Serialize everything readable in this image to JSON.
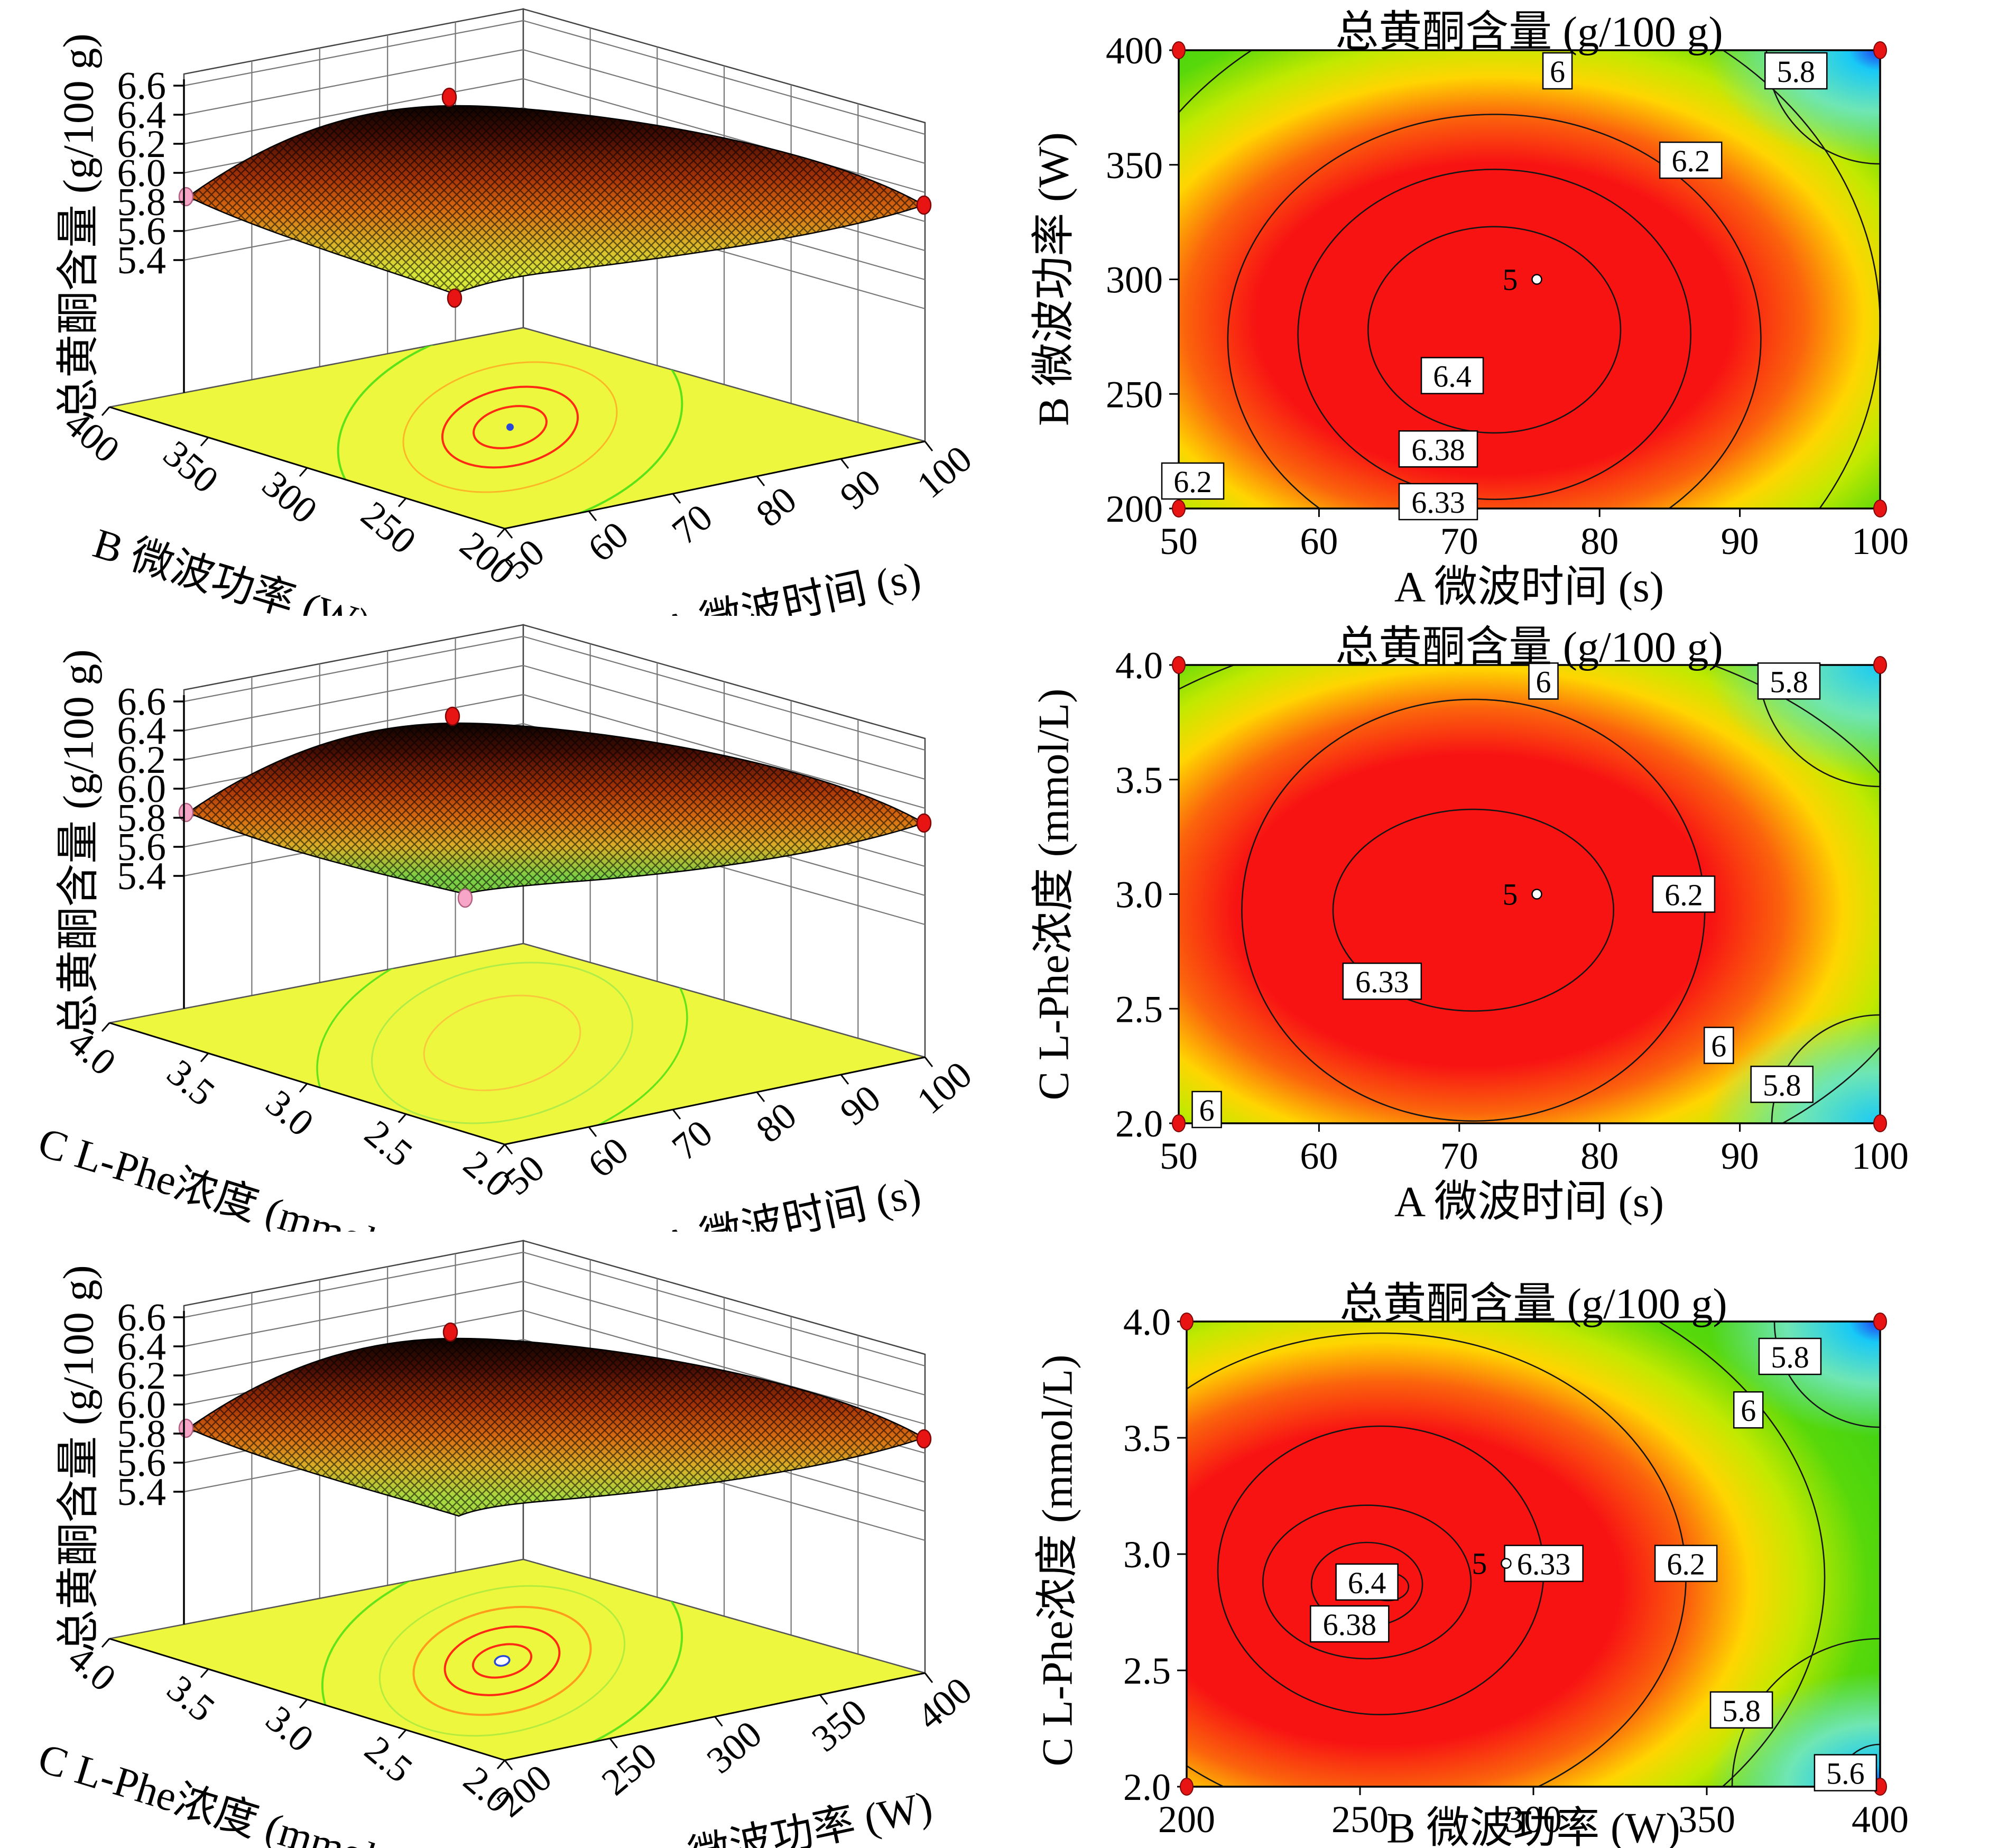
{
  "shared": {
    "z_axis_label": "总黄酮含量 (g/100 g)",
    "contour_title": "总黄酮含量 (g/100 g)",
    "z_ticks": [
      "6.6",
      "6.4",
      "6.2",
      "6.0",
      "5.8",
      "5.6",
      "5.4"
    ]
  },
  "axes": {
    "time": {
      "label": "A 微波时间 (s)",
      "ticks": [
        "50",
        "60",
        "70",
        "80",
        "90",
        "100"
      ],
      "range": [
        50,
        100
      ]
    },
    "power": {
      "label": "B 微波功率 (W)",
      "ticks": [
        "200",
        "250",
        "300",
        "350",
        "400"
      ],
      "range": [
        200,
        400
      ]
    },
    "phe": {
      "label": "C L-Phe浓度 (mmol/L)",
      "ticks": [
        "2.0",
        "2.5",
        "3.0",
        "3.5",
        "4.0"
      ],
      "range": [
        2,
        4
      ]
    }
  },
  "colors": {
    "contour_high": "#f81313",
    "contour_orange": "#fb640c",
    "contour_yellow": "#ffd501",
    "contour_green": "#3fd214",
    "contour_cyan": "#18c9f6",
    "contour_blue": "#2334f2",
    "design_point_red": "#e81414",
    "design_point_pink": "#f7a6c8",
    "floor_yellow": "#edf73d"
  },
  "chart_data": [
    {
      "type": "surface3d",
      "panel": "row1-left",
      "zlabel": "总黄酮含量 (g/100 g)",
      "xlabel": "A 微波时间 (s)",
      "ylabel": "B 微波功率 (W)",
      "x_range": [
        50,
        100
      ],
      "y_range": [
        200,
        400
      ],
      "z_ticks": [
        "6.6",
        "6.4",
        "6.2",
        "6.0",
        "5.8",
        "5.6",
        "5.4"
      ],
      "peak": {
        "x": 75,
        "y": 300,
        "z": 6.42
      },
      "edge_value": 5.8,
      "markers": "red design points at peak, right corner and front corner; pink point at left edge near z=5.8",
      "floor_projection": "yellow plane with two red contour ellipses, orange and green outer rings, blue center dot"
    },
    {
      "type": "contour",
      "panel": "row1-right",
      "title": "总黄酮含量 (g/100 g)",
      "xlabel": "A 微波时间 (s)",
      "ylabel": "B 微波功率 (W)",
      "x_range": [
        50,
        100
      ],
      "y_range": [
        200,
        400
      ],
      "levels": [
        5.8,
        6.0,
        6.2,
        6.33,
        6.38,
        6.4
      ],
      "labels": [
        {
          "text": "6",
          "x": 77,
          "y": 391
        },
        {
          "text": "5.8",
          "x": 94,
          "y": 391
        },
        {
          "text": "6.2",
          "x": 86.5,
          "y": 352
        },
        {
          "text": "6.4",
          "x": 69.5,
          "y": 258
        },
        {
          "text": "6.38",
          "x": 68.5,
          "y": 226
        },
        {
          "text": "6.33",
          "x": 68.5,
          "y": 203
        },
        {
          "text": "6.2",
          "x": 51,
          "y": 212
        }
      ],
      "center_point": {
        "x": 75,
        "y": 300,
        "label": "5"
      },
      "corner_markers": "red dots at the four plot corners",
      "corner_shading": "blue/cyan at top-right corner"
    },
    {
      "type": "surface3d",
      "panel": "row2-left",
      "zlabel": "总黄酮含量 (g/100 g)",
      "xlabel": "A 微波时间 (s)",
      "ylabel": "C L-Phe浓度 (mmol/L)",
      "x_range": [
        50,
        100
      ],
      "y_range": [
        2,
        4
      ],
      "z_ticks": [
        "6.6",
        "6.4",
        "6.2",
        "6.0",
        "5.8",
        "5.6",
        "5.4"
      ],
      "peak": {
        "x": 75,
        "y": 3.0,
        "z": 6.4
      },
      "edge_value": 5.8,
      "markers": "red design points at peak and right corner; pink points at left edge (5.8) and front corner",
      "floor_projection": "yellow plane with faint green and orange contour rings"
    },
    {
      "type": "contour",
      "panel": "row2-right",
      "title": "总黄酮含量 (g/100 g)",
      "xlabel": "A 微波时间 (s)",
      "ylabel": "C L-Phe浓度 (mmol/L)",
      "x_range": [
        50,
        100
      ],
      "y_range": [
        2,
        4
      ],
      "levels": [
        5.8,
        6.0,
        6.2,
        6.33
      ],
      "labels": [
        {
          "text": "6",
          "x": 76,
          "y": 3.93
        },
        {
          "text": "5.8",
          "x": 93.5,
          "y": 3.93
        },
        {
          "text": "6.2",
          "x": 86,
          "y": 3.0
        },
        {
          "text": "6",
          "x": 88.5,
          "y": 2.34
        },
        {
          "text": "5.8",
          "x": 93,
          "y": 2.17
        },
        {
          "text": "6.33",
          "x": 64.5,
          "y": 2.62
        },
        {
          "text": "6",
          "x": 52,
          "y": 2.06
        }
      ],
      "center_point": {
        "x": 75,
        "y": 3.0,
        "label": "5"
      },
      "corner_markers": "red dots at the four plot corners",
      "corner_shading": "cyan at top-right and bottom-right corners"
    },
    {
      "type": "surface3d",
      "panel": "row3-left",
      "zlabel": "总黄酮含量 (g/100 g)",
      "xlabel": "B 微波功率 (W)",
      "ylabel": "C L-Phe浓度 (mmol/L)",
      "x_range": [
        200,
        400
      ],
      "y_range": [
        2,
        4
      ],
      "z_ticks": [
        "6.6",
        "6.4",
        "6.2",
        "6.0",
        "5.8",
        "5.6",
        "5.4"
      ],
      "peak": {
        "x": 255,
        "y": 2.9,
        "z": 6.42
      },
      "edge_value": 5.8,
      "markers": "red design points at peak and right corner; pink point at left edge near z=5.8",
      "floor_projection": "yellow plane with red/orange contour ellipses, green outer rings, open blue center circle"
    },
    {
      "type": "contour",
      "panel": "row3-right",
      "title": "总黄酮含量 (g/100 g)",
      "xlabel": "B 微波功率 (W)",
      "ylabel": "C L-Phe浓度 (mmol/L)",
      "x_range": [
        200,
        400
      ],
      "y_range": [
        2,
        4
      ],
      "levels": [
        5.6,
        5.8,
        6.0,
        6.2,
        6.33,
        6.38,
        6.4
      ],
      "labels": [
        {
          "text": "5.8",
          "x": 374,
          "y": 3.85
        },
        {
          "text": "6",
          "x": 362,
          "y": 3.62
        },
        {
          "text": "6.2",
          "x": 344,
          "y": 2.96
        },
        {
          "text": "6.33",
          "x": 303,
          "y": 2.96
        },
        {
          "text": "6.4",
          "x": 252,
          "y": 2.88
        },
        {
          "text": "6.38",
          "x": 247,
          "y": 2.7
        },
        {
          "text": "5.8",
          "x": 360,
          "y": 2.33
        },
        {
          "text": "5.6",
          "x": 390,
          "y": 2.06
        }
      ],
      "center_point": {
        "x": 290,
        "y": 2.96,
        "label": "5"
      },
      "corner_markers": "red dots at the four plot corners",
      "corner_shading": "blue at top-right and bottom-right corners"
    }
  ]
}
